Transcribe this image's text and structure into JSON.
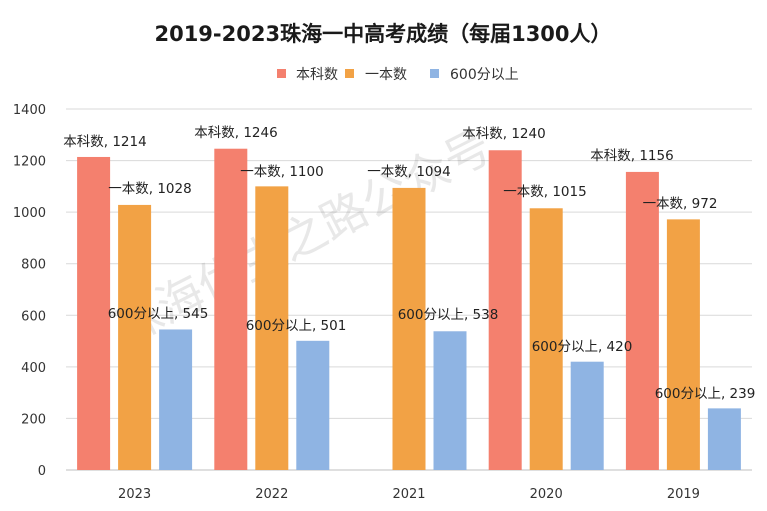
{
  "chart_data": {
    "type": "bar",
    "title": "2019-2023珠海一中高考成绩（每届1300人）",
    "categories": [
      "2023",
      "2022",
      "2021",
      "2020",
      "2019"
    ],
    "series": [
      {
        "name": "本科数",
        "color": "#F4806E",
        "values": [
          1214,
          1246,
          null,
          1240,
          1156
        ]
      },
      {
        "name": "一本数",
        "color": "#F2A245",
        "values": [
          1028,
          1100,
          1094,
          1015,
          972
        ]
      },
      {
        "name": "600分以上",
        "color": "#8FB4E3",
        "values": [
          545,
          501,
          538,
          420,
          239
        ]
      }
    ],
    "y_ticks": [
      0,
      200,
      400,
      600,
      800,
      1000,
      1200,
      1400
    ],
    "ylim": [
      0,
      1400
    ],
    "grid": true,
    "legend_position": "top-center",
    "data_label_separator": ", ",
    "watermark": "珠海优生之路公众号"
  }
}
